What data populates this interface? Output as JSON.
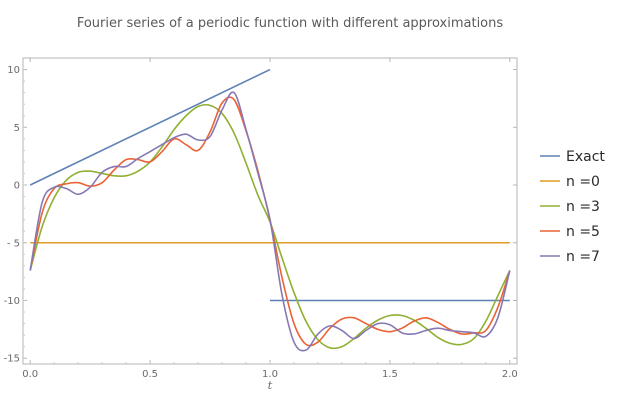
{
  "chart_data": {
    "type": "line",
    "title": "Fourier series of a periodic function with different approximations",
    "xlabel": "t",
    "ylabel": "",
    "xlim": [
      -0.03,
      2.03
    ],
    "ylim": [
      -15.5,
      11
    ],
    "x_ticks": [
      0.0,
      0.5,
      1.0,
      1.5,
      2.0
    ],
    "x_tick_labels": [
      "0.0",
      "0.5",
      "1.0",
      "1.5",
      "2.0"
    ],
    "y_ticks": [
      10,
      5,
      0,
      -5,
      -10,
      -15
    ],
    "y_tick_labels": [
      "10",
      "5",
      "0",
      "- 5",
      "-10",
      "-15"
    ],
    "grid": false,
    "legend_position": "right",
    "legend": [
      "Exact",
      "n =0",
      "n =3",
      "n =5",
      "n =7"
    ],
    "series": [
      {
        "name": "Exact",
        "color": "#5e81b5",
        "segments": [
          [
            [
              0.0,
              0.0
            ],
            [
              1.0,
              10.0
            ]
          ],
          [
            [
              1.0,
              -10.0
            ],
            [
              2.0,
              -10.0
            ]
          ]
        ]
      },
      {
        "name": "n =0",
        "color": "#e19c24",
        "x": [
          0.0,
          2.0
        ],
        "y": [
          -5.0,
          -5.0
        ]
      },
      {
        "name": "n =3",
        "color": "#8fb032",
        "x": [
          0.0,
          0.05,
          0.1,
          0.15,
          0.2,
          0.25,
          0.3,
          0.35,
          0.4,
          0.45,
          0.5,
          0.55,
          0.6,
          0.65,
          0.7,
          0.75,
          0.8,
          0.85,
          0.9,
          0.95,
          1.0,
          1.05,
          1.1,
          1.15,
          1.2,
          1.25,
          1.3,
          1.35,
          1.4,
          1.45,
          1.5,
          1.55,
          1.6,
          1.65,
          1.7,
          1.75,
          1.8,
          1.85,
          1.9,
          1.95,
          2.0
        ],
        "y": [
          -7.4,
          -3.6,
          -1.1,
          0.4,
          1.1,
          1.2,
          1.0,
          0.8,
          0.8,
          1.2,
          2.0,
          3.3,
          4.8,
          6.0,
          6.8,
          6.9,
          6.2,
          4.5,
          1.9,
          -0.9,
          -3.2,
          -6.3,
          -9.3,
          -11.8,
          -13.4,
          -14.1,
          -14.0,
          -13.3,
          -12.4,
          -11.7,
          -11.3,
          -11.3,
          -11.7,
          -12.4,
          -13.2,
          -13.7,
          -13.8,
          -13.3,
          -11.8,
          -9.6,
          -7.4
        ]
      },
      {
        "name": "n =5",
        "color": "#eb6235",
        "x": [
          0.0,
          0.05,
          0.1,
          0.15,
          0.2,
          0.25,
          0.3,
          0.35,
          0.4,
          0.45,
          0.5,
          0.55,
          0.6,
          0.65,
          0.7,
          0.75,
          0.8,
          0.85,
          0.9,
          0.95,
          1.0,
          1.05,
          1.1,
          1.15,
          1.2,
          1.25,
          1.3,
          1.35,
          1.4,
          1.45,
          1.5,
          1.55,
          1.6,
          1.65,
          1.7,
          1.75,
          1.8,
          1.85,
          1.9,
          1.95,
          2.0
        ],
        "y": [
          -7.4,
          -2.4,
          -0.3,
          0.1,
          0.2,
          -0.1,
          0.2,
          1.3,
          2.2,
          2.2,
          2.0,
          2.9,
          4.0,
          3.5,
          3.0,
          4.6,
          7.1,
          7.4,
          4.7,
          1.2,
          -3.0,
          -8.0,
          -12.0,
          -13.8,
          -13.6,
          -12.4,
          -11.6,
          -11.5,
          -12.0,
          -12.5,
          -12.7,
          -12.4,
          -11.8,
          -11.5,
          -11.9,
          -12.5,
          -12.9,
          -12.8,
          -12.6,
          -10.6,
          -7.4
        ]
      },
      {
        "name": "n =7",
        "color": "#8778b3",
        "x": [
          0.0,
          0.05,
          0.1,
          0.15,
          0.2,
          0.25,
          0.3,
          0.35,
          0.4,
          0.45,
          0.5,
          0.55,
          0.6,
          0.65,
          0.7,
          0.75,
          0.8,
          0.85,
          0.9,
          0.95,
          1.0,
          1.05,
          1.1,
          1.15,
          1.2,
          1.25,
          1.3,
          1.35,
          1.4,
          1.45,
          1.5,
          1.55,
          1.6,
          1.65,
          1.7,
          1.75,
          1.8,
          1.85,
          1.9,
          1.95,
          2.0
        ],
        "y": [
          -7.4,
          -1.5,
          -0.2,
          -0.3,
          -0.8,
          -0.2,
          1.1,
          1.6,
          1.6,
          2.3,
          2.9,
          3.5,
          4.1,
          4.4,
          3.9,
          4.2,
          6.5,
          8.0,
          4.8,
          1.0,
          -3.0,
          -9.5,
          -13.6,
          -14.3,
          -12.9,
          -12.2,
          -12.6,
          -13.3,
          -12.6,
          -12.0,
          -12.1,
          -12.8,
          -12.9,
          -12.6,
          -12.4,
          -12.6,
          -12.7,
          -12.8,
          -13.1,
          -11.5,
          -7.4
        ]
      }
    ]
  }
}
